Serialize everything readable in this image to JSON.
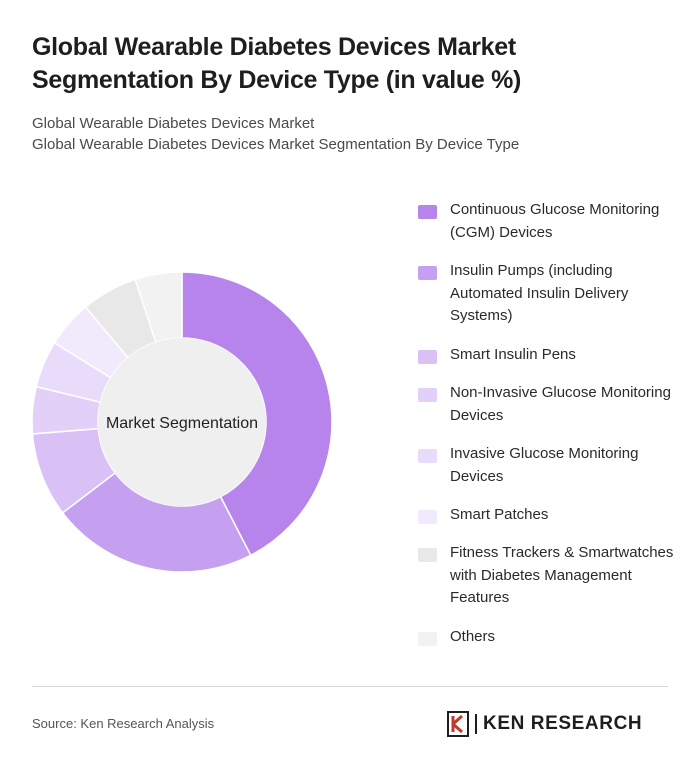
{
  "title": "Global Wearable Diabetes Devices Market Segmentation By Device Type (in value %)",
  "subtitle_line1": "Global Wearable Diabetes Devices Market",
  "subtitle_line2": "Global Wearable Diabetes Devices Market Segmentation By Device Type",
  "source": "Source: Ken Research Analysis",
  "logo_text": "KEN RESEARCH",
  "chart_data": {
    "type": "pie",
    "center_label": "Market Segmentation",
    "legend_position": "right",
    "categories": [
      "Continuous Glucose Monitoring (CGM) Devices",
      "Insulin Pumps (including Automated Insulin Delivery Systems)",
      "Smart Insulin Pens",
      "Non-Invasive Glucose Monitoring Devices",
      "Invasive Glucose Monitoring Devices",
      "Smart Patches",
      "Fitness Trackers & Smartwatches with Diabetes Management Features",
      "Others"
    ],
    "values": [
      42,
      22,
      9,
      5,
      5,
      5,
      6,
      5
    ],
    "colors": [
      "#b784ec",
      "#c6a0f0",
      "#d9c1f6",
      "#e2d0f8",
      "#e9dcfa",
      "#f1eafc",
      "#e8e8e8",
      "#f2f2f2"
    ]
  }
}
